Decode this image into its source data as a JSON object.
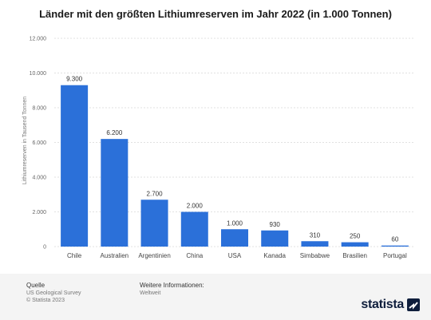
{
  "chart_data": {
    "type": "bar",
    "title": "Länder mit den größten Lithiumreserven im Jahr 2022 (in 1.000 Tonnen)",
    "ylabel": "Lithiumreserven in Tausend Tonnen",
    "xlabel": "",
    "categories": [
      "Chile",
      "Australien",
      "Argentinien",
      "China",
      "USA",
      "Kanada",
      "Simbabwe",
      "Brasilien",
      "Portugal"
    ],
    "values": [
      9300,
      6200,
      2700,
      2000,
      1000,
      930,
      310,
      250,
      60
    ],
    "value_labels": [
      "9.300",
      "6.200",
      "2.700",
      "2.000",
      "1.000",
      "930",
      "310",
      "250",
      "60"
    ],
    "ylim": [
      0,
      12000
    ],
    "yticks": [
      0,
      2000,
      4000,
      6000,
      8000,
      10000,
      12000
    ],
    "ytick_labels": [
      "0",
      "2.000",
      "4.000",
      "6.000",
      "8.000",
      "10.000",
      "12.000"
    ],
    "grid": true,
    "bar_color": "#2b70d9"
  },
  "footer": {
    "source_heading": "Quelle",
    "source_line1": "US Geological Survey",
    "source_line2": "© Statista 2023",
    "info_heading": "Weitere Informationen:",
    "info_line": "Weltweit",
    "brand": "statista"
  }
}
